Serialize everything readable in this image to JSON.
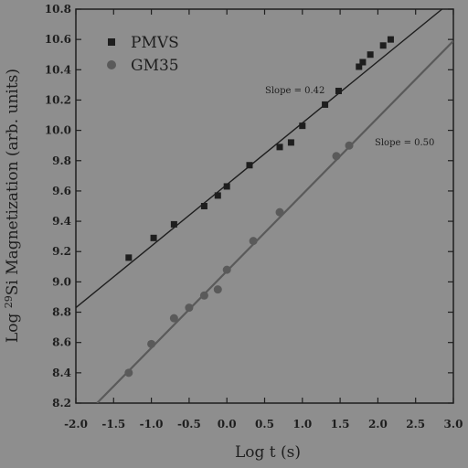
{
  "chart_data": {
    "type": "scatter",
    "xlabel": "Log t (s)",
    "ylabel_prefix": "Log ",
    "ylabel_sup": "29",
    "ylabel_rest": "Si Magnetization (arb. units)",
    "xlim": [
      -2.0,
      3.0
    ],
    "ylim": [
      8.2,
      10.8
    ],
    "xticks": [
      "-2.0",
      "-1.5",
      "-1.0",
      "-0.5",
      "0.0",
      "0.5",
      "1.0",
      "1.5",
      "2.0",
      "2.5",
      "3.0"
    ],
    "yticks": [
      "8.2",
      "8.4",
      "8.6",
      "8.8",
      "9.0",
      "9.2",
      "9.4",
      "9.6",
      "9.8",
      "10.0",
      "10.2",
      "10.4",
      "10.6",
      "10.8"
    ],
    "legend_position": "top-left",
    "series": [
      {
        "name": "PMVS",
        "marker": "square",
        "color": "#1e1e1e",
        "x": [
          -1.3,
          -0.97,
          -0.7,
          -0.3,
          -0.12,
          0.0,
          0.3,
          0.7,
          0.85,
          1.0,
          1.3,
          1.48,
          1.75,
          1.8,
          1.9,
          2.07,
          2.17
        ],
        "y": [
          9.16,
          9.29,
          9.38,
          9.5,
          9.57,
          9.63,
          9.77,
          9.89,
          9.92,
          10.03,
          10.17,
          10.26,
          10.42,
          10.45,
          10.5,
          10.56,
          10.6
        ],
        "fit": {
          "x": [
            -2.0,
            2.85
          ],
          "y": [
            8.83,
            10.8
          ]
        },
        "annotation": "Slope = 0.42"
      },
      {
        "name": "GM35",
        "marker": "circle",
        "color": "#5a5a5a",
        "x": [
          -1.3,
          -1.0,
          -0.7,
          -0.5,
          -0.3,
          -0.12,
          0.0,
          0.35,
          0.7,
          1.45,
          1.62
        ],
        "y": [
          8.4,
          8.59,
          8.76,
          8.83,
          8.91,
          8.95,
          9.08,
          9.27,
          9.46,
          9.83,
          9.9
        ],
        "fit": {
          "x": [
            -1.72,
            3.0
          ],
          "y": [
            8.2,
            10.59
          ]
        },
        "annotation": "Slope = 0.50"
      }
    ]
  }
}
